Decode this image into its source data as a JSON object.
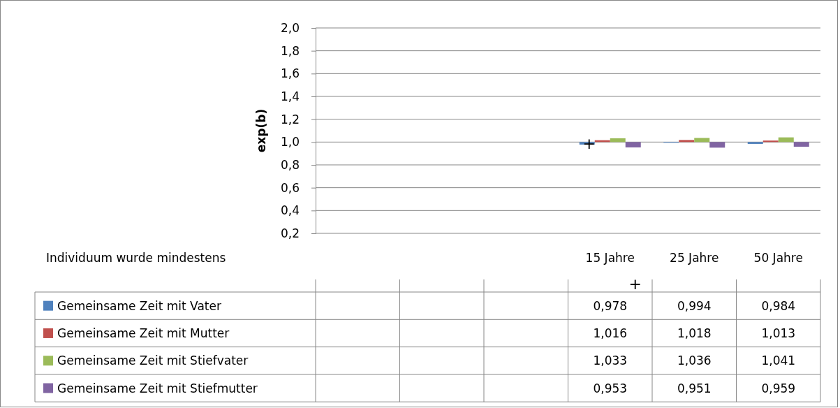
{
  "chart_data": {
    "type": "bar",
    "ylabel": "exp(b)",
    "xlabel": "Individuum wurde mindestens",
    "categories": [
      null,
      null,
      null,
      "15 Jahre",
      "25 Jahre",
      "50 Jahre"
    ],
    "series": [
      {
        "name": "Gemeinsame Zeit mit Vater",
        "color": "#4f81bd",
        "base": [
          null,
          null,
          null,
          1,
          1,
          1
        ],
        "values": [
          null,
          null,
          null,
          -0.022,
          -0.006,
          -0.016
        ],
        "value_labels": [
          null,
          null,
          null,
          "0,978",
          "0,994",
          "0,984"
        ]
      },
      {
        "name": "Gemeinsame Zeit mit Mutter",
        "color": "#c0504d",
        "base": [
          null,
          null,
          null,
          1,
          1,
          1
        ],
        "values": [
          null,
          null,
          null,
          0.016,
          0.018,
          0.013
        ],
        "value_labels": [
          null,
          null,
          null,
          "1,016",
          "1,018",
          "1,013"
        ]
      },
      {
        "name": "Gemeinsame Zeit mit Stiefvater",
        "color": "#9bbb59",
        "base": [
          null,
          null,
          null,
          1,
          1,
          1
        ],
        "values": [
          null,
          null,
          null,
          0.033,
          0.036,
          0.041
        ],
        "value_labels": [
          null,
          null,
          null,
          "1,033",
          "1,036",
          "1,041"
        ]
      },
      {
        "name": "Gemeinsame Zeit mit Stiefmutter",
        "color": "#8064a2",
        "base": [
          null,
          null,
          null,
          1,
          1,
          1
        ],
        "values": [
          null,
          null,
          null,
          -0.047,
          -0.049,
          -0.041
        ],
        "value_labels": [
          null,
          null,
          null,
          "0,953",
          "0,951",
          "0,959"
        ]
      }
    ],
    "ylim": [
      0.2,
      2.0
    ],
    "yticks": [
      {
        "value": 0.2,
        "label": "0,2"
      },
      {
        "value": 0.4,
        "label": "0,4"
      },
      {
        "value": 0.6,
        "label": "0,6"
      },
      {
        "value": 0.8,
        "label": "0,8"
      },
      {
        "value": 1.0,
        "label": "1,0"
      },
      {
        "value": 1.2,
        "label": "1,2"
      },
      {
        "value": 1.4,
        "label": "1,4"
      },
      {
        "value": 1.6,
        "label": "1,6"
      },
      {
        "value": 1.8,
        "label": "1,8"
      },
      {
        "value": 2.0,
        "label": "2,0"
      }
    ],
    "grid": "y",
    "legend": "bottom",
    "annotations": [
      {
        "text": "+",
        "x": "15 Jahre",
        "y": 0.99
      },
      "+"
    ]
  }
}
